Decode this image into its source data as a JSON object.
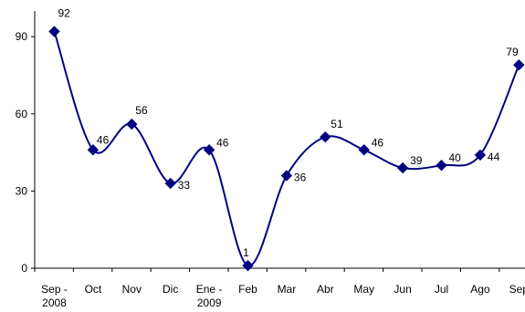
{
  "chart_data": {
    "type": "line",
    "title": "",
    "xlabel": "",
    "ylabel": "",
    "ylim": [
      0,
      100
    ],
    "yticks": [
      "0",
      "30",
      "60",
      "90"
    ],
    "grid": false,
    "legend": "none",
    "categories": [
      [
        "Sep -",
        "2008"
      ],
      [
        "Oct"
      ],
      [
        "Nov"
      ],
      [
        "Dic"
      ],
      [
        "Ene -",
        "2009"
      ],
      [
        "Feb"
      ],
      [
        "Mar"
      ],
      [
        "Abr"
      ],
      [
        "May"
      ],
      [
        "Jun"
      ],
      [
        "Jul"
      ],
      [
        "Ago"
      ],
      [
        "Sep"
      ]
    ],
    "series": [
      {
        "values": [
          92,
          46,
          56,
          33,
          46,
          1,
          36,
          51,
          46,
          39,
          40,
          44,
          79
        ],
        "labels": [
          "92",
          "46",
          "56",
          "33",
          "46",
          "1",
          "36",
          "51",
          "46",
          "39",
          "40",
          "44",
          "79"
        ],
        "color": "#000080"
      }
    ],
    "axis_color": "#000000"
  }
}
